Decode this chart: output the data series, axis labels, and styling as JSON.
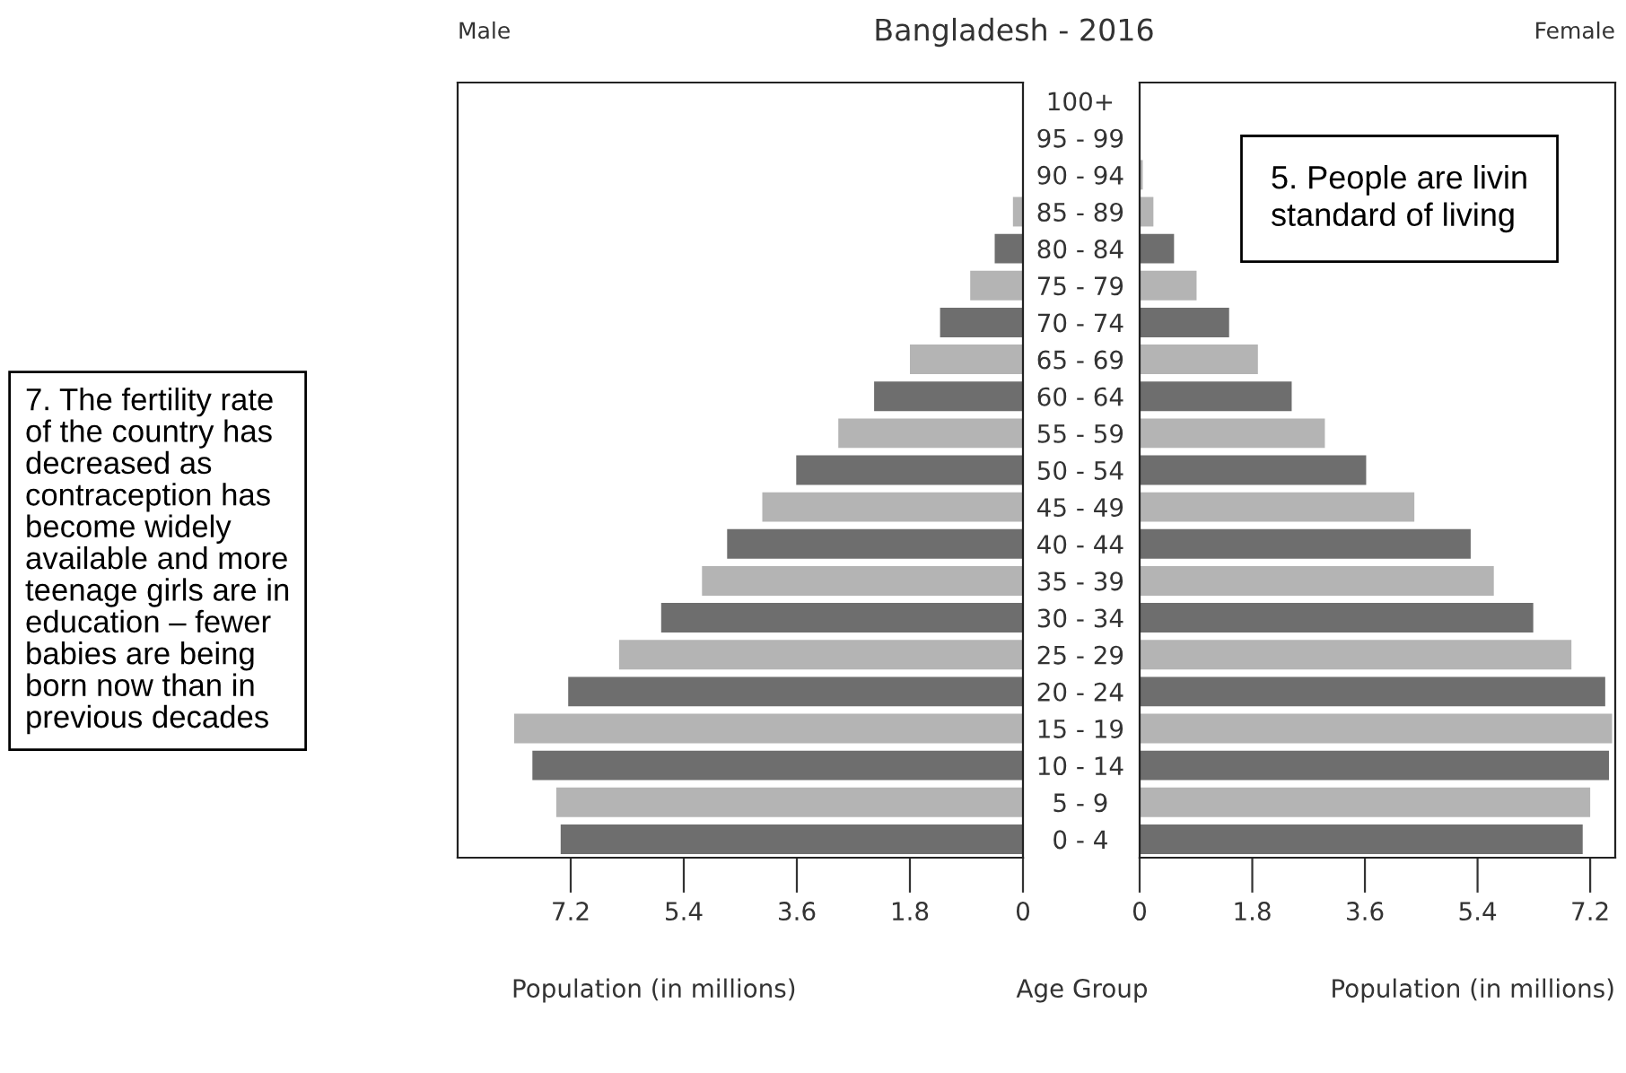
{
  "chart_data": [
    {
      "type": "bar",
      "orientation": "horizontal",
      "title": "Bangladesh - 2016",
      "subtitle": "Male",
      "xlabel": "Population (in millions)",
      "ylabel": "Age Group",
      "categories": [
        "100+",
        "95 - 99",
        "90 - 94",
        "85 - 89",
        "80 - 84",
        "75 - 79",
        "70 - 74",
        "65 - 69",
        "60 - 64",
        "55 - 59",
        "50 - 54",
        "45 - 49",
        "40 - 44",
        "35 - 39",
        "30 - 34",
        "25 - 29",
        "20 - 24",
        "15 - 19",
        "10 - 14",
        "5 - 9",
        "0 - 4"
      ],
      "values": [
        0,
        0,
        null,
        0.16,
        0.45,
        0.84,
        1.32,
        1.8,
        2.37,
        2.94,
        3.61,
        4.15,
        4.71,
        5.11,
        5.76,
        6.43,
        7.24,
        8.1,
        7.81,
        7.43,
        7.36
      ],
      "colors": [
        "#b4b4b4",
        "#6e6e6e",
        "#b4b4b4",
        "#b4b4b4",
        "#6e6e6e",
        "#b4b4b4",
        "#6e6e6e",
        "#b4b4b4",
        "#6e6e6e",
        "#b4b4b4",
        "#6e6e6e",
        "#b4b4b4",
        "#6e6e6e",
        "#b4b4b4",
        "#6e6e6e",
        "#b4b4b4",
        "#6e6e6e",
        "#b4b4b4",
        "#6e6e6e",
        "#b4b4b4",
        "#6e6e6e"
      ],
      "xlim": [
        9.0,
        0
      ],
      "xticks": [
        {
          "value": 7.2,
          "label": "7.2"
        },
        {
          "value": 5.4,
          "label": "5.4"
        },
        {
          "value": 3.6,
          "label": "3.6"
        },
        {
          "value": 1.8,
          "label": "1.8"
        },
        0
      ],
      "grid": false,
      "legend": false,
      "annotations": [
        "7. The fertility rate\nof the country has\ndecreased as\ncontraception has\nbecome widely\navailable and more\nteenage girls are in\neducation – fewer\nbabies are being\nborn now than in\nprevious decades"
      ]
    },
    {
      "type": "bar",
      "orientation": "horizontal",
      "subtitle": "Female",
      "xlabel": "Population (in millions)",
      "tick_labels": "x",
      "values": [
        0,
        0,
        0.05,
        0.22,
        0.55,
        0.91,
        1.43,
        1.89,
        2.43,
        2.96,
        3.62,
        4.39,
        5.29,
        5.66,
        6.29,
        6.9,
        7.44,
        7.55,
        7.5,
        7.2,
        7.08
      ],
      "colors": [
        "#b4b4b4",
        "#6e6e6e",
        "#b4b4b4",
        "#b4b4b4",
        "#6e6e6e",
        "#b4b4b4",
        "#6e6e6e",
        "#b4b4b4",
        "#6e6e6e",
        "#b4b4b4",
        "#6e6e6e",
        "#b4b4b4",
        "#6e6e6e",
        "#b4b4b4",
        "#6e6e6e",
        "#b4b4b4",
        "#6e6e6e",
        "#b4b4b4",
        "#6e6e6e",
        "#b4b4b4",
        "#6e6e6e"
      ],
      "xlim": [
        0,
        7.6
      ],
      "xticks": [
        0,
        {
          "value": 1.8,
          "label": "1.8"
        },
        {
          "value": 3.6,
          "label": "3.6"
        },
        {
          "value": 5.4,
          "label": "5.4"
        },
        {
          "value": 7.2,
          "label": "7.2"
        }
      ],
      "grid": false,
      "legend": false,
      "annotations": [
        "5. People are livin\nstandard of living"
      ]
    }
  ]
}
